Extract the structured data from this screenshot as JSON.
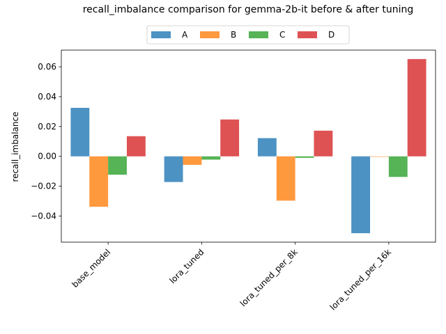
{
  "chart_data": {
    "type": "bar",
    "title": "recall_imbalance comparison for gemma-2b-it before & after tuning",
    "xlabel": "",
    "ylabel": "recall_imbalance",
    "categories": [
      "base_model",
      "lora_tuned",
      "lora_tuned_per_8k",
      "lora_tuned_per_16k"
    ],
    "series": [
      {
        "name": "A",
        "color": "#1f77b4",
        "values": [
          0.0325,
          -0.0172,
          0.0122,
          -0.0515
        ]
      },
      {
        "name": "B",
        "color": "#ff7f0e",
        "values": [
          -0.0338,
          -0.0057,
          -0.0297,
          -0.0003
        ]
      },
      {
        "name": "C",
        "color": "#2ca02c",
        "values": [
          -0.0123,
          -0.0022,
          -0.001,
          -0.0138
        ]
      },
      {
        "name": "D",
        "color": "#d62728",
        "values": [
          0.0135,
          0.0247,
          0.0172,
          0.0652
        ]
      }
    ],
    "ylim": [
      -0.0575,
      0.0712
    ],
    "yticks": [
      -0.04,
      -0.02,
      0.0,
      0.02,
      0.04,
      0.06
    ],
    "ytick_labels": [
      "−0.04",
      "−0.02",
      "0.00",
      "0.02",
      "0.04",
      "0.06"
    ],
    "grid": false,
    "legend_position": "top-center",
    "legend_columns": 4,
    "xtick_rotation": 45
  }
}
